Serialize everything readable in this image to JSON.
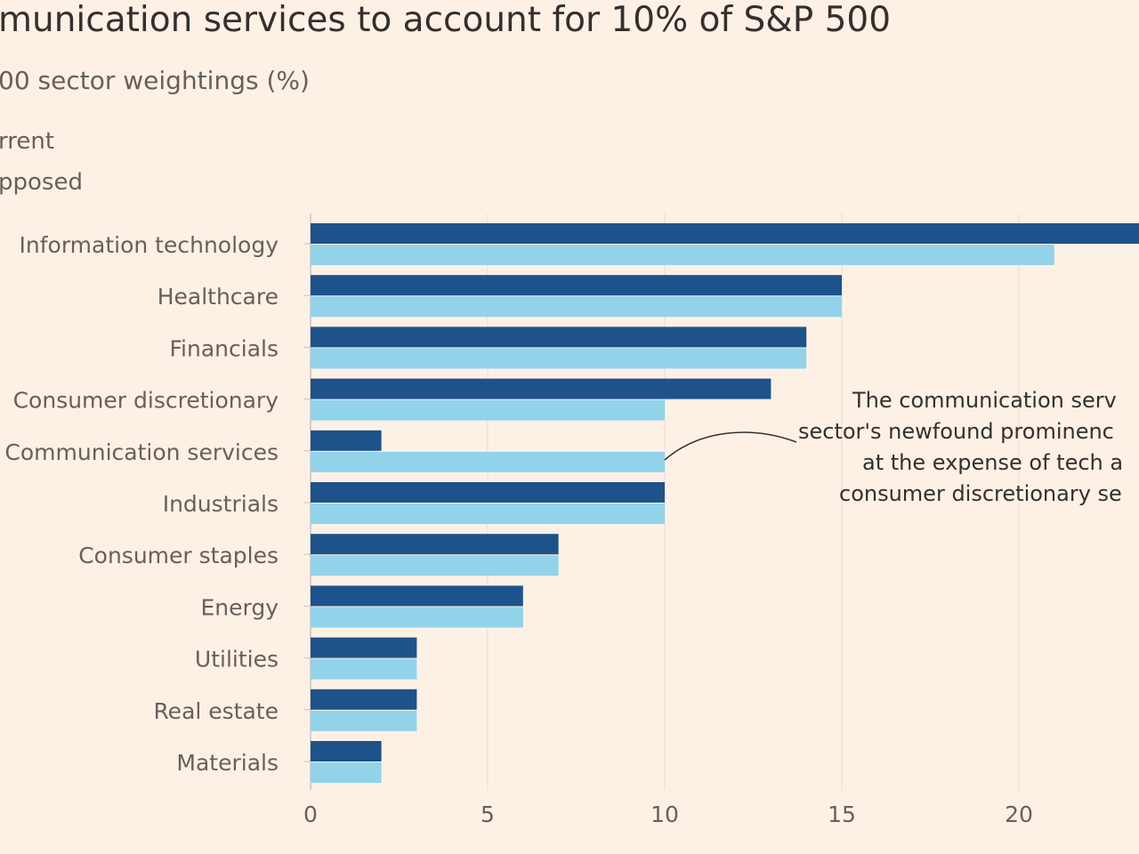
{
  "title": "munication services to account for 10% of S&P 500",
  "subtitle": "00 sector weightings (%)",
  "legend": [
    {
      "label": "rrent",
      "color": "#1e528a"
    },
    {
      "label": "pposed",
      "color": "#92d3ea"
    }
  ],
  "annotation": [
    "The communication serv",
    "sector's newfound prominenc",
    "at the expense of tech a",
    "consumer discretionary se"
  ],
  "chart_data": {
    "type": "bar",
    "orientation": "horizontal",
    "categories": [
      "Information technology",
      "Healthcare",
      "Financials",
      "Consumer discretionary",
      "Communication services",
      "Industrials",
      "Consumer staples",
      "Energy",
      "Utilities",
      "Real estate",
      "Materials"
    ],
    "series": [
      {
        "name": "rrent",
        "color": "#1e528a",
        "values": [
          24,
          15,
          14,
          13,
          2,
          10,
          7,
          6,
          3,
          3,
          2
        ]
      },
      {
        "name": "pposed",
        "color": "#92d3ea",
        "values": [
          21,
          15,
          14,
          10,
          10,
          10,
          7,
          6,
          3,
          3,
          2
        ]
      }
    ],
    "xticks": [
      "0",
      "5",
      "10",
      "15",
      "20"
    ],
    "xlim": [
      0,
      23.3
    ],
    "grid": true
  }
}
